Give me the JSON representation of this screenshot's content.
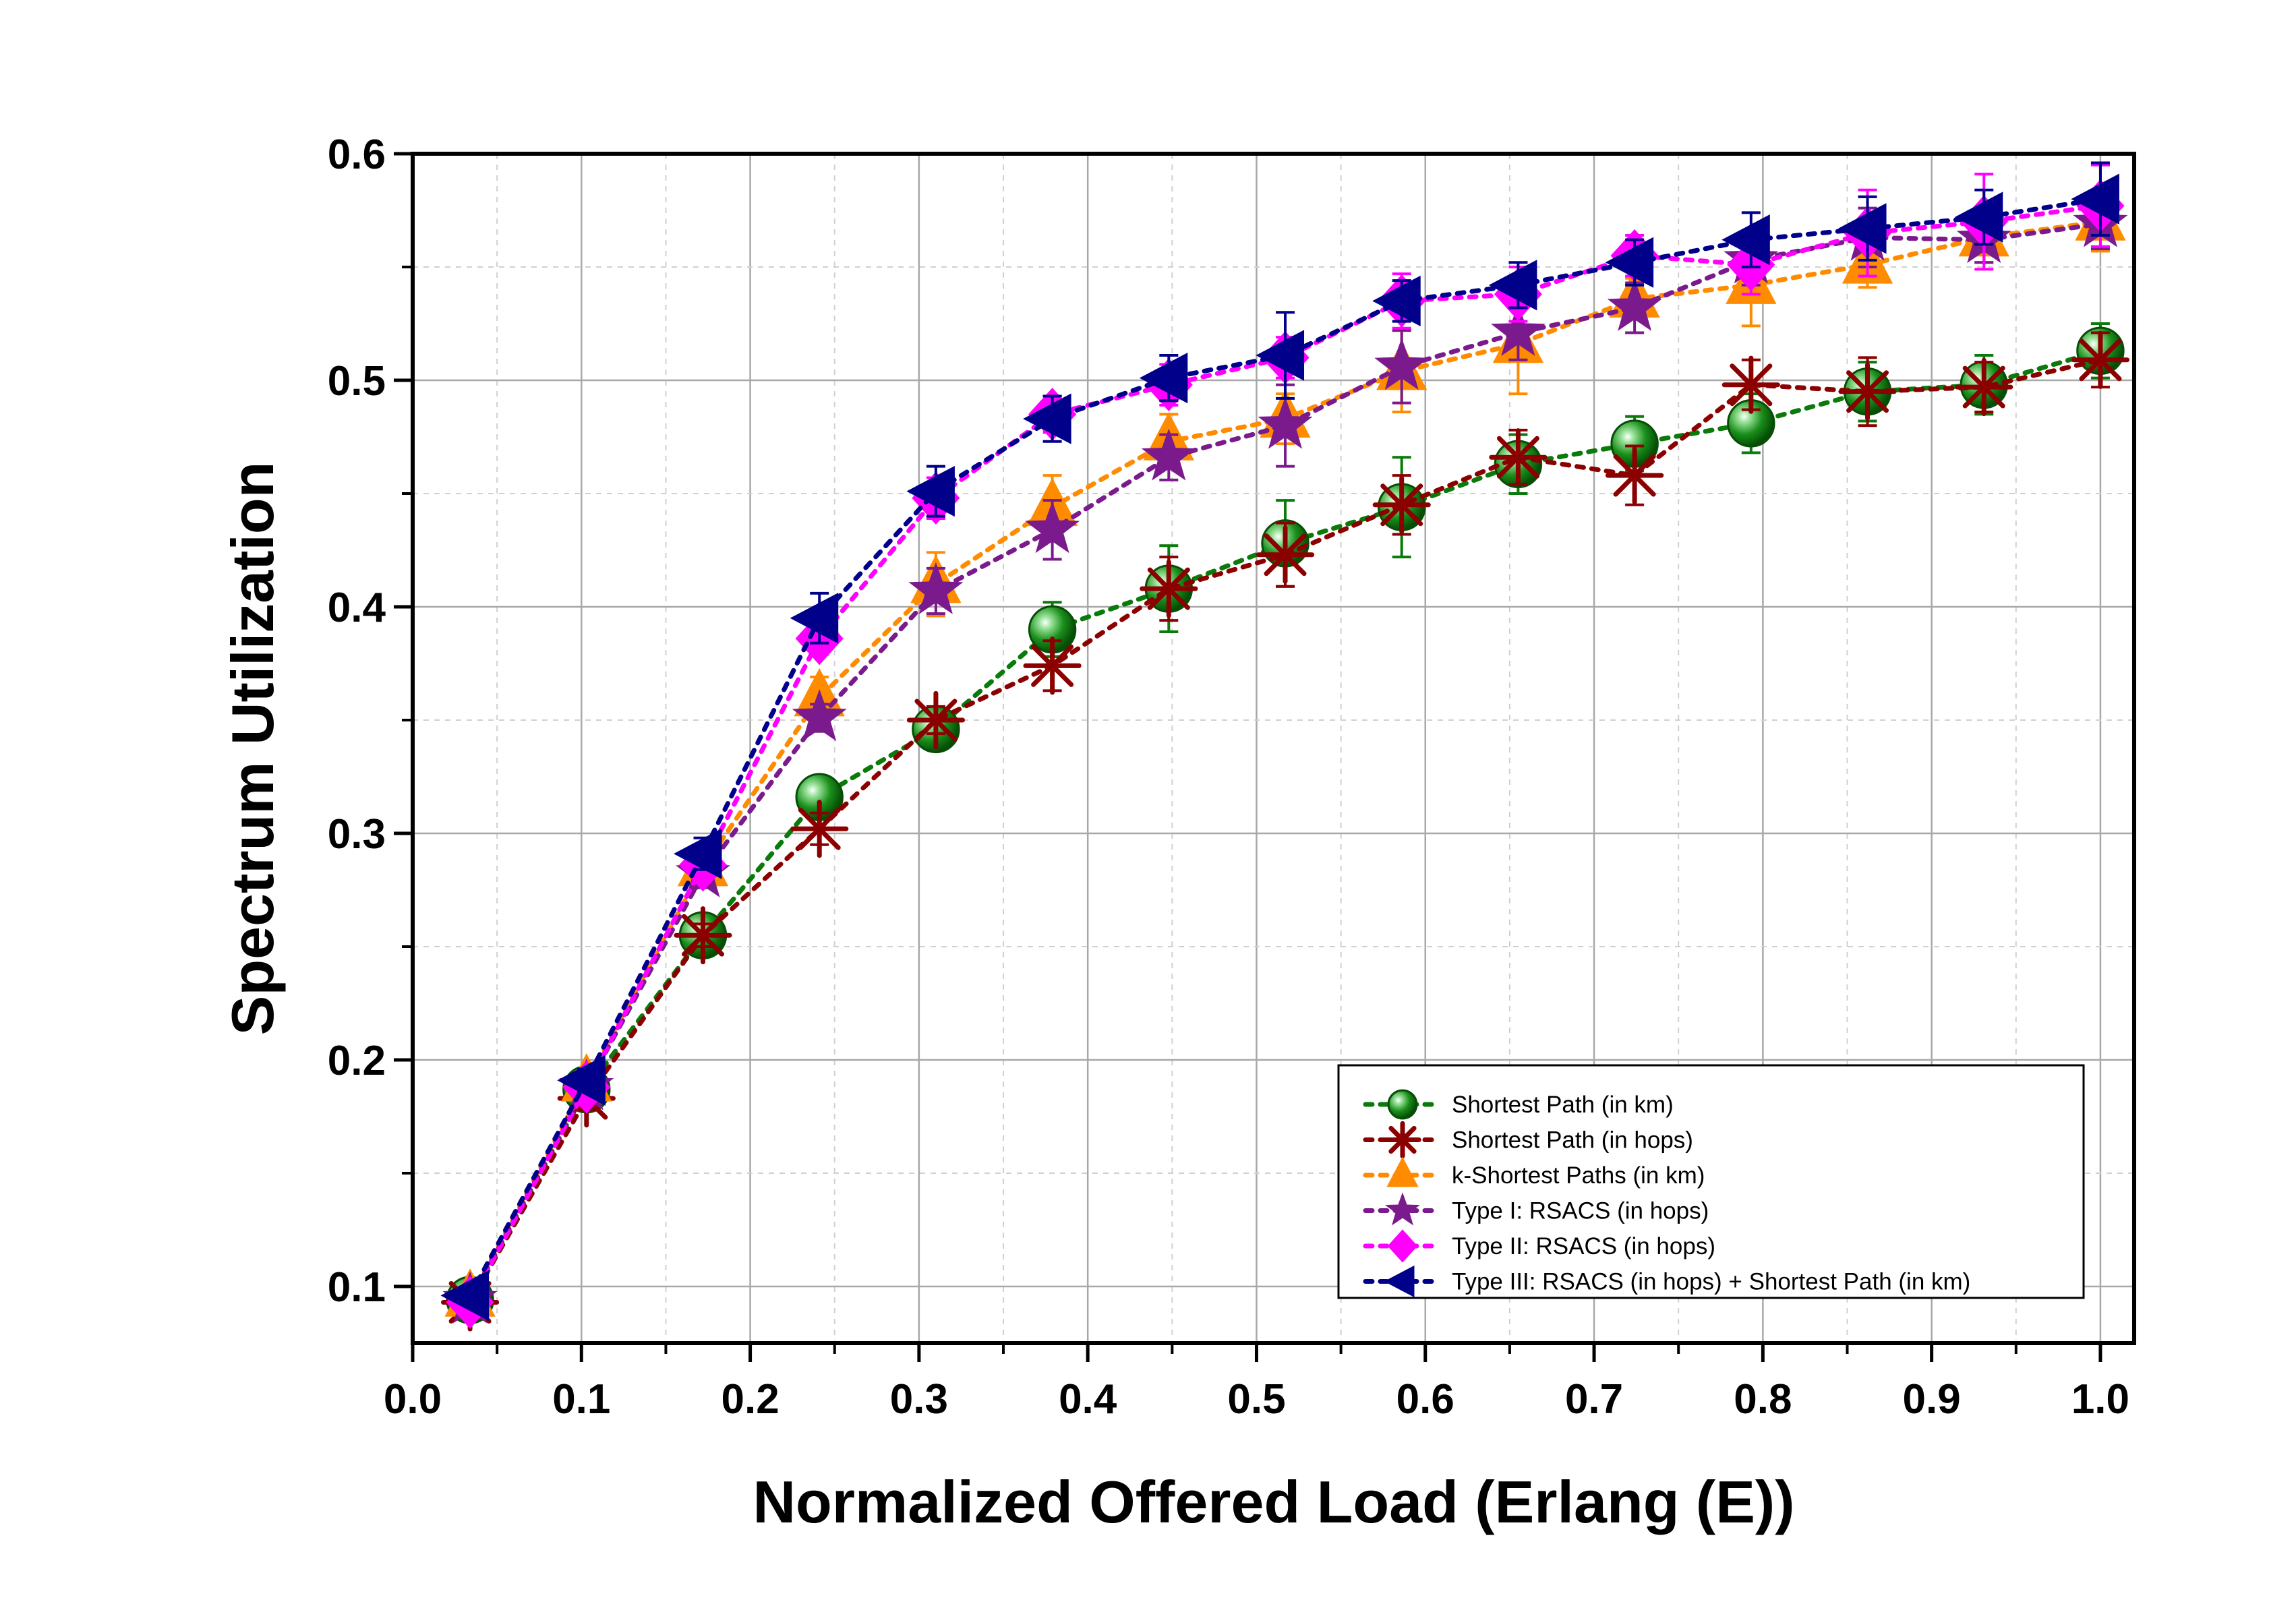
{
  "chart_data": {
    "type": "line",
    "xlabel": "Normalized Offered Load (Erlang (E))",
    "ylabel": "Spectrum Utilization",
    "xlim": [
      0.0,
      1.02
    ],
    "ylim": [
      0.075,
      0.6
    ],
    "x_ticks": [
      "0.0",
      "0.1",
      "0.2",
      "0.3",
      "0.4",
      "0.5",
      "0.6",
      "0.7",
      "0.8",
      "0.9",
      "1.0"
    ],
    "y_ticks": [
      "0.1",
      "0.2",
      "0.3",
      "0.4",
      "0.5",
      "0.6"
    ],
    "grid": true,
    "legend_position": "bottom-right",
    "x": [
      0.034,
      0.103,
      0.172,
      0.241,
      0.31,
      0.379,
      0.448,
      0.517,
      0.586,
      0.655,
      0.724,
      0.793,
      0.862,
      0.931,
      1.0
    ],
    "series": [
      {
        "name": "Shortest Path (in km)",
        "color": "#0a7a0a",
        "marker": "sphere",
        "values": [
          0.094,
          0.187,
          0.255,
          0.316,
          0.346,
          0.39,
          0.408,
          0.428,
          0.444,
          0.463,
          0.472,
          0.481,
          0.495,
          0.498,
          0.513
        ],
        "errors": [
          0.004,
          0.005,
          0.006,
          0.008,
          0.008,
          0.012,
          0.019,
          0.019,
          0.022,
          0.013,
          0.012,
          0.013,
          0.013,
          0.013,
          0.012
        ]
      },
      {
        "name": "Shortest Path (in hops)",
        "color": "#8b0000",
        "marker": "asterisk",
        "values": [
          0.093,
          0.183,
          0.255,
          0.302,
          0.35,
          0.374,
          0.408,
          0.423,
          0.445,
          0.466,
          0.458,
          0.498,
          0.495,
          0.497,
          0.509
        ],
        "errors": [
          0.004,
          0.005,
          0.005,
          0.007,
          0.006,
          0.011,
          0.014,
          0.014,
          0.013,
          0.012,
          0.013,
          0.011,
          0.015,
          0.011,
          0.012
        ]
      },
      {
        "name": "k-Shortest Paths (in km)",
        "color": "#ff8c00",
        "marker": "triangle-up",
        "values": [
          0.095,
          0.19,
          0.285,
          0.36,
          0.41,
          0.444,
          0.473,
          0.483,
          0.504,
          0.516,
          0.536,
          0.542,
          0.551,
          0.563,
          0.57
        ],
        "errors": [
          0.004,
          0.006,
          0.005,
          0.009,
          0.014,
          0.014,
          0.012,
          0.011,
          0.018,
          0.022,
          0.009,
          0.018,
          0.01,
          0.011,
          0.013
        ]
      },
      {
        "name": "Type I: RSACS (in hops)",
        "color": "#7b1a8c",
        "marker": "star",
        "values": [
          0.094,
          0.188,
          0.282,
          0.351,
          0.407,
          0.434,
          0.466,
          0.48,
          0.506,
          0.521,
          0.532,
          0.553,
          0.563,
          0.562,
          0.569
        ],
        "errors": [
          0.004,
          0.005,
          0.006,
          0.006,
          0.01,
          0.013,
          0.01,
          0.018,
          0.016,
          0.012,
          0.011,
          0.011,
          0.013,
          0.01,
          0.011
        ]
      },
      {
        "name": "Type II: RSACS (in hops)",
        "color": "#ff00ff",
        "marker": "diamond",
        "values": [
          0.093,
          0.188,
          0.286,
          0.386,
          0.448,
          0.485,
          0.498,
          0.51,
          0.535,
          0.538,
          0.555,
          0.551,
          0.565,
          0.57,
          0.577
        ],
        "errors": [
          0.003,
          0.005,
          0.006,
          0.007,
          0.009,
          0.008,
          0.009,
          0.009,
          0.012,
          0.012,
          0.009,
          0.013,
          0.019,
          0.021,
          0.018
        ]
      },
      {
        "name": "Type III: RSACS (in hops) + Shortest Path (in km)",
        "color": "#00008b",
        "marker": "triangle-left",
        "values": [
          0.096,
          0.191,
          0.291,
          0.395,
          0.451,
          0.483,
          0.501,
          0.511,
          0.535,
          0.542,
          0.552,
          0.562,
          0.567,
          0.572,
          0.58
        ],
        "errors": [
          0.004,
          0.005,
          0.007,
          0.011,
          0.011,
          0.01,
          0.01,
          0.019,
          0.009,
          0.01,
          0.01,
          0.012,
          0.014,
          0.012,
          0.016
        ]
      }
    ]
  }
}
